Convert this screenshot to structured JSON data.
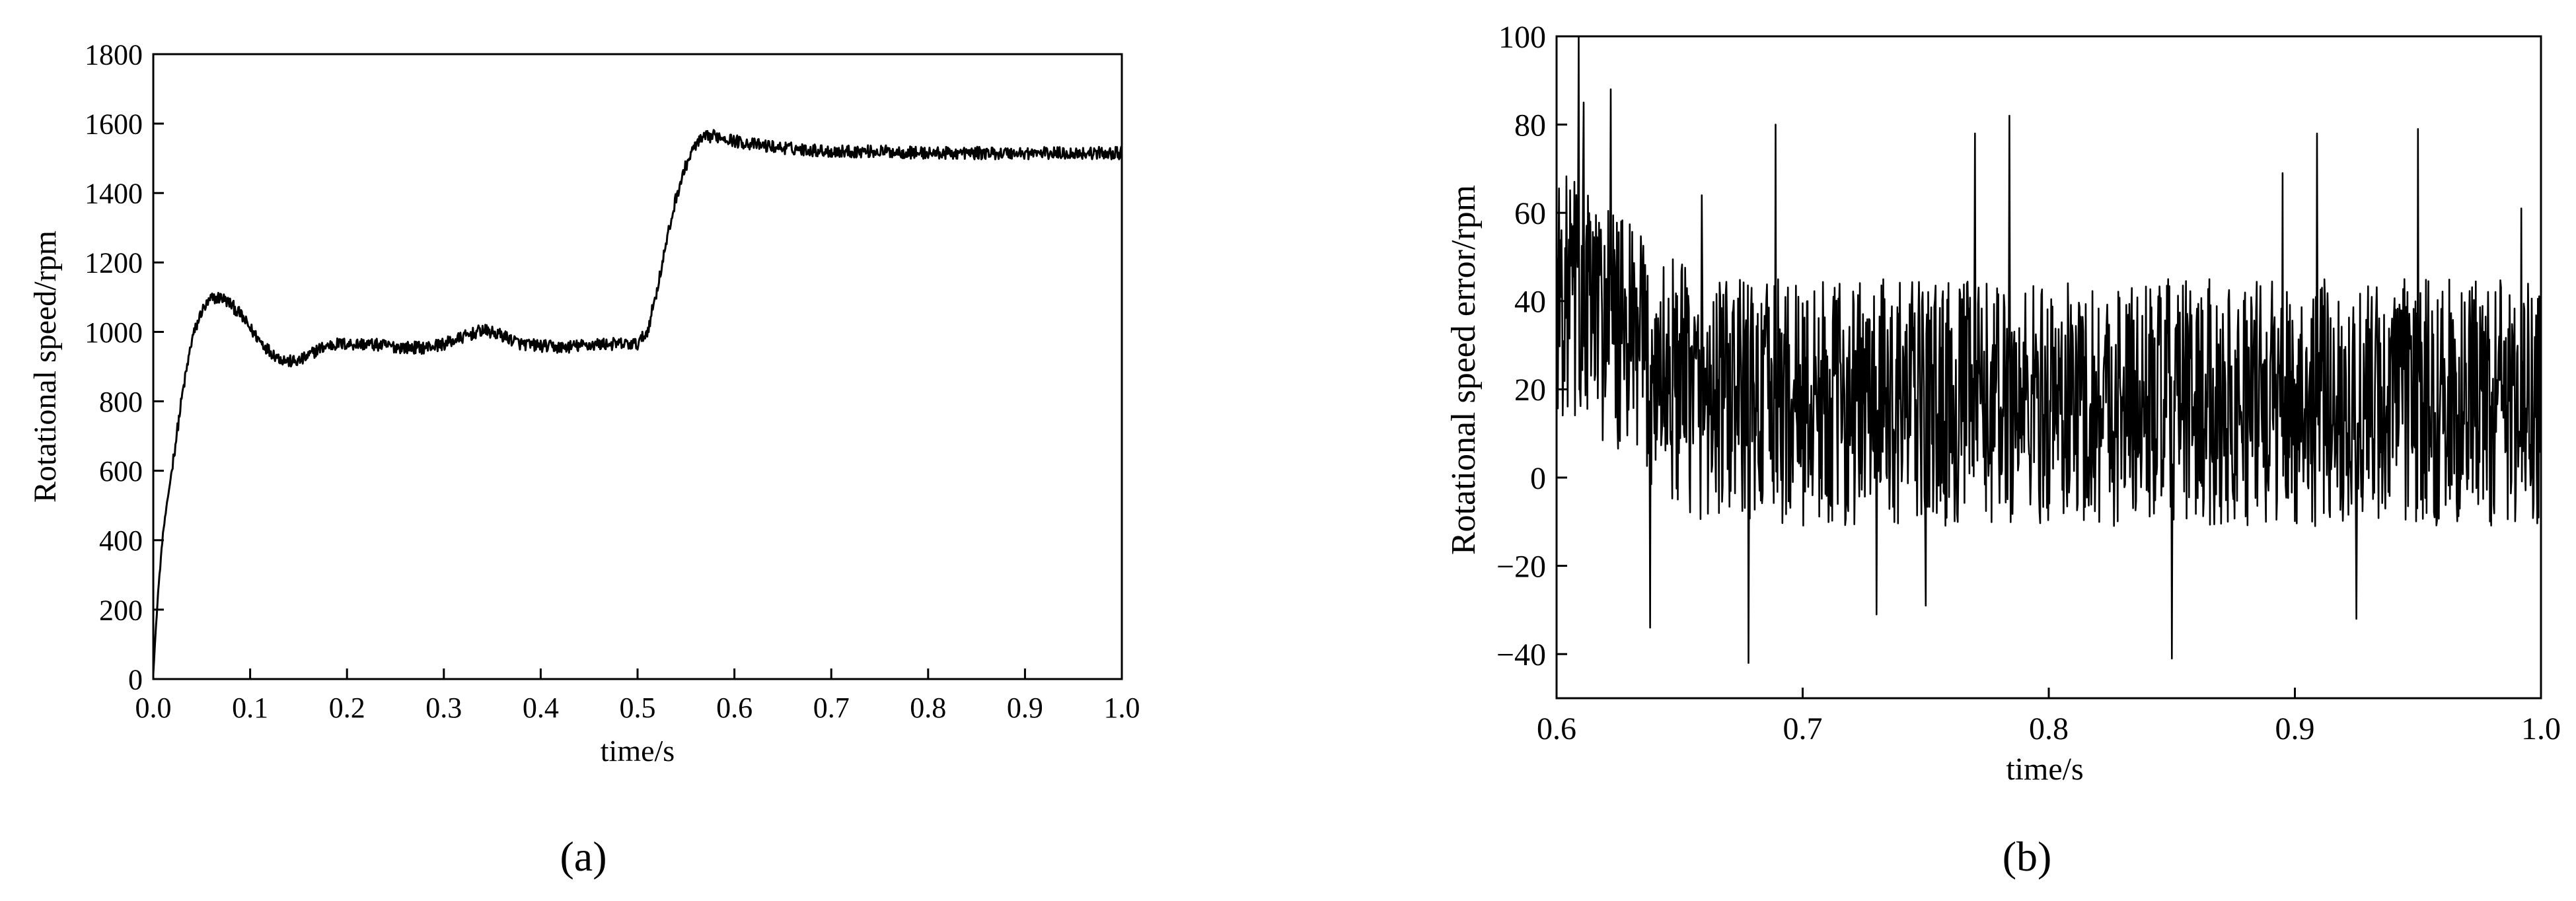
{
  "chart_data": [
    {
      "panel_label": "(a)",
      "type": "line",
      "xlabel": "time/s",
      "ylabel": "Rotational speed/rpm",
      "xlim": [
        0.0,
        1.0
      ],
      "ylim": [
        0,
        1800
      ],
      "x_ticks": [
        "0.0",
        "0.1",
        "0.2",
        "0.3",
        "0.4",
        "0.5",
        "0.6",
        "0.7",
        "0.8",
        "0.9",
        "1.0"
      ],
      "y_ticks": [
        "0",
        "200",
        "400",
        "600",
        "800",
        "1000",
        "1200",
        "1400",
        "1600",
        "1800"
      ],
      "grid": false,
      "line_color": "#000000",
      "noise_amplitude_rpm": 18,
      "series": [
        {
          "x": [
            0.0,
            0.005,
            0.01,
            0.02,
            0.03,
            0.04,
            0.05,
            0.06,
            0.07,
            0.08,
            0.09,
            0.1,
            0.11,
            0.12,
            0.13,
            0.14,
            0.15,
            0.16,
            0.17,
            0.18,
            0.19,
            0.2,
            0.22,
            0.24,
            0.26,
            0.28,
            0.3,
            0.32,
            0.34,
            0.36,
            0.38,
            0.4,
            0.42,
            0.44,
            0.46,
            0.48,
            0.5,
            0.51,
            0.52,
            0.53,
            0.54,
            0.55,
            0.56,
            0.57,
            0.58,
            0.59,
            0.6,
            0.62,
            0.65,
            0.7,
            0.75,
            0.8,
            0.85,
            0.9,
            0.95,
            1.0
          ],
          "y": [
            20,
            250,
            420,
            620,
            820,
            980,
            1060,
            1095,
            1100,
            1080,
            1050,
            1010,
            975,
            945,
            925,
            915,
            915,
            930,
            950,
            960,
            965,
            965,
            965,
            960,
            955,
            955,
            965,
            985,
            1005,
            990,
            965,
            960,
            955,
            960,
            965,
            965,
            965,
            1000,
            1120,
            1260,
            1390,
            1480,
            1540,
            1560,
            1565,
            1560,
            1550,
            1540,
            1530,
            1520,
            1520,
            1515,
            1515,
            1515,
            1515,
            1515
          ]
        }
      ]
    },
    {
      "panel_label": "(b)",
      "type": "line",
      "xlabel": "time/s",
      "ylabel": "Rotational speed error/rpm",
      "xlim": [
        0.6,
        1.0
      ],
      "ylim": [
        -50,
        100
      ],
      "x_ticks": [
        "0.6",
        "0.7",
        "0.8",
        "0.9",
        "1.0"
      ],
      "y_ticks": [
        "−40",
        "−20",
        "0",
        "20",
        "40",
        "60",
        "80",
        "100"
      ],
      "grid": false,
      "line_color": "#000000",
      "samples": 1600,
      "baseline": {
        "x": [
          0.6,
          0.61,
          0.62,
          0.63,
          0.64,
          0.66,
          0.7,
          0.8,
          0.9,
          1.0
        ],
        "y": [
          42,
          40,
          35,
          30,
          24,
          18,
          17,
          17,
          17,
          17
        ]
      },
      "noise_amplitude_rpm": 28,
      "spikes": {
        "x": [
          0.609,
          0.611,
          0.622,
          0.638,
          0.659,
          0.678,
          0.689,
          0.73,
          0.75,
          0.77,
          0.784,
          0.85,
          0.895,
          0.909,
          0.925,
          0.95,
          0.992
        ],
        "y": [
          100,
          85,
          88,
          -34,
          64,
          -42,
          80,
          -31,
          -29,
          78,
          82,
          -41,
          69,
          78,
          -32,
          79,
          61
        ]
      }
    }
  ]
}
